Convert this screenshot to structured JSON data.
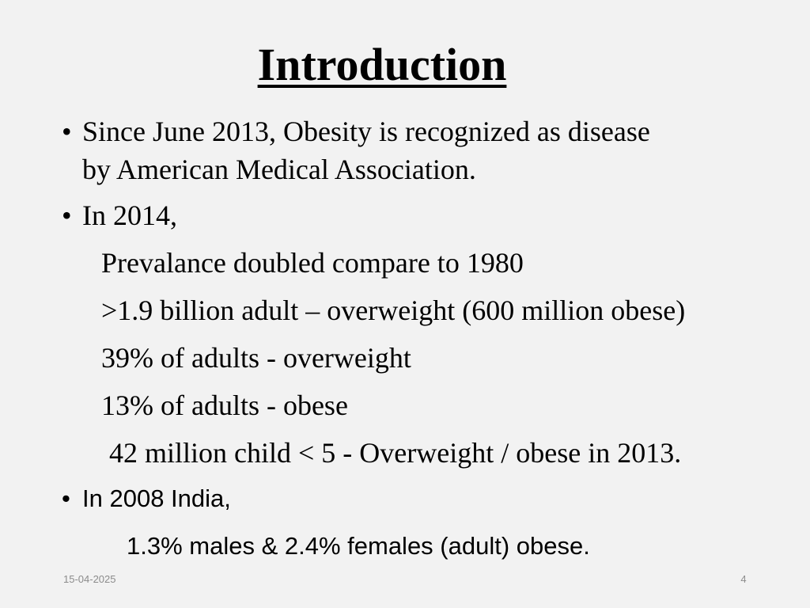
{
  "slide": {
    "title": "Introduction",
    "bullets": [
      {
        "marker": "•",
        "lines": [
          "Since June 2013, Obesity is recognized as disease",
          "by American Medical Association."
        ]
      },
      {
        "marker": "•",
        "lines": [
          "In 2014,"
        ]
      },
      {
        "marker": "•",
        "lines": [
          "In 2008 India,"
        ]
      }
    ],
    "sub_2014": [
      "Prevalance doubled compare to 1980",
      ">1.9 billion adult – overweight (600 million obese)",
      "39% of adults - overweight",
      "13% of adults - obese",
      "42 million child < 5 - Overweight / obese in 2013."
    ],
    "sub_2008": [
      "1.3% males & 2.4% females (adult)  obese."
    ],
    "footer": {
      "date": "15-04-2025",
      "page_number": "4"
    }
  }
}
